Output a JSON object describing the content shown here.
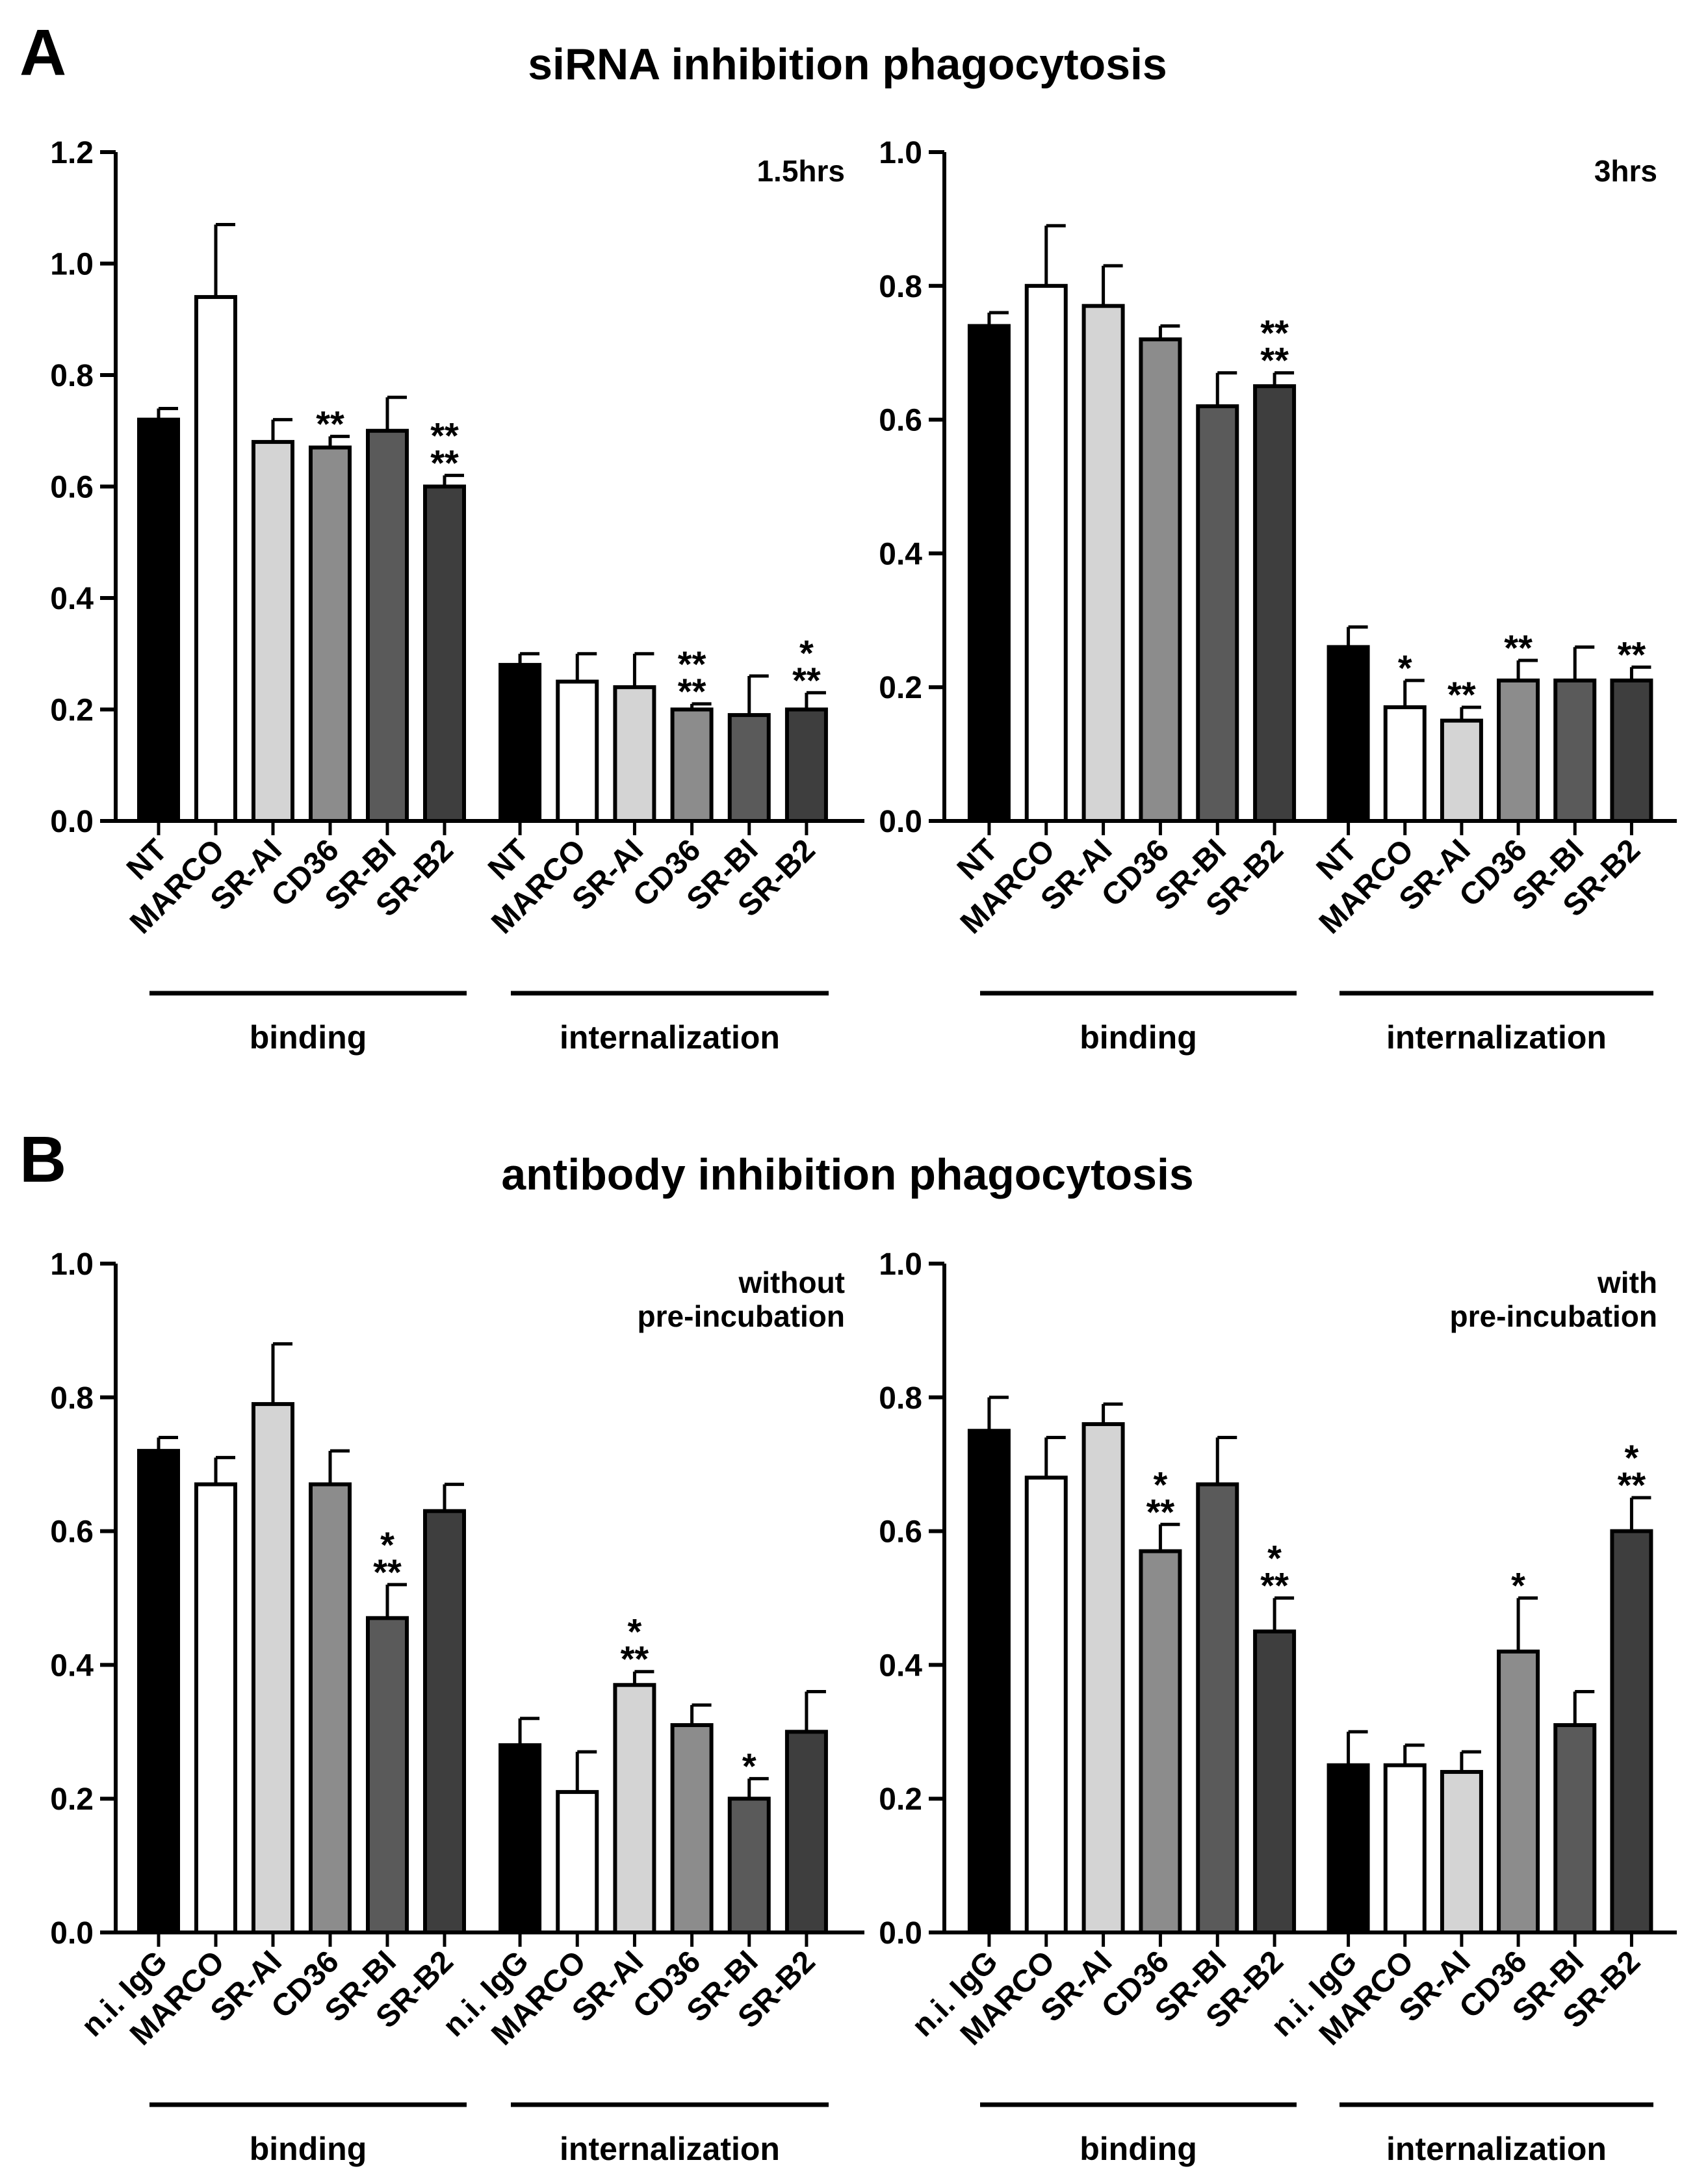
{
  "colors": {
    "NT": "#000000",
    "n.i. IgG": "#000000",
    "MARCO": "#ffffff",
    "SR-AI": "#d4d4d4",
    "CD36": "#8c8c8c",
    "SR-BI": "#5a5a5a",
    "SR-B2": "#3e3e3e",
    "stroke": "#000000"
  },
  "panels": [
    {
      "letter": "A",
      "title": "siRNA inhibition phagocytosis"
    },
    {
      "letter": "B",
      "title": "antibody inhibition phagocytosis"
    }
  ],
  "chart_data": [
    {
      "type": "bar",
      "panel": "A",
      "corner_label": [
        "1.5hrs"
      ],
      "ylim": [
        0,
        1.2
      ],
      "yticks": [
        "0.0",
        "0.2",
        "0.4",
        "0.6",
        "0.8",
        "1.0",
        "1.2"
      ],
      "groups": [
        {
          "label": "binding",
          "categories": [
            "NT",
            "MARCO",
            "SR-AI",
            "CD36",
            "SR-BI",
            "SR-B2"
          ],
          "values": [
            0.72,
            0.94,
            0.68,
            0.67,
            0.7,
            0.6
          ],
          "errors": [
            0.02,
            0.13,
            0.04,
            0.02,
            0.06,
            0.02
          ],
          "stars": [
            "",
            "",
            "",
            "**",
            "",
            "**\n**"
          ]
        },
        {
          "label": "internalization",
          "categories": [
            "NT",
            "MARCO",
            "SR-AI",
            "CD36",
            "SR-BI",
            "SR-B2"
          ],
          "values": [
            0.28,
            0.25,
            0.24,
            0.2,
            0.19,
            0.2
          ],
          "errors": [
            0.02,
            0.05,
            0.06,
            0.01,
            0.07,
            0.03
          ],
          "stars": [
            "",
            "",
            "",
            "**\n**",
            "",
            "*\n**"
          ]
        }
      ]
    },
    {
      "type": "bar",
      "panel": "A",
      "corner_label": [
        "3hrs"
      ],
      "ylim": [
        0,
        1.0
      ],
      "yticks": [
        "0.0",
        "0.2",
        "0.4",
        "0.6",
        "0.8",
        "1.0"
      ],
      "groups": [
        {
          "label": "binding",
          "categories": [
            "NT",
            "MARCO",
            "SR-AI",
            "CD36",
            "SR-BI",
            "SR-B2"
          ],
          "values": [
            0.74,
            0.8,
            0.77,
            0.72,
            0.62,
            0.65
          ],
          "errors": [
            0.02,
            0.09,
            0.06,
            0.02,
            0.05,
            0.02
          ],
          "stars": [
            "",
            "",
            "",
            "",
            "",
            "**\n**"
          ]
        },
        {
          "label": "internalization",
          "categories": [
            "NT",
            "MARCO",
            "SR-AI",
            "CD36",
            "SR-BI",
            "SR-B2"
          ],
          "values": [
            0.26,
            0.17,
            0.15,
            0.21,
            0.21,
            0.21
          ],
          "errors": [
            0.03,
            0.04,
            0.02,
            0.03,
            0.05,
            0.02
          ],
          "stars": [
            "",
            "*",
            "**",
            "**",
            "",
            "**"
          ]
        }
      ]
    },
    {
      "type": "bar",
      "panel": "B",
      "corner_label": [
        "without",
        "pre-incubation"
      ],
      "ylim": [
        0,
        1.0
      ],
      "yticks": [
        "0.0",
        "0.2",
        "0.4",
        "0.6",
        "0.8",
        "1.0"
      ],
      "groups": [
        {
          "label": "binding",
          "categories": [
            "n.i. IgG",
            "MARCO",
            "SR-AI",
            "CD36",
            "SR-BI",
            "SR-B2"
          ],
          "values": [
            0.72,
            0.67,
            0.79,
            0.67,
            0.47,
            0.63
          ],
          "errors": [
            0.02,
            0.04,
            0.09,
            0.05,
            0.05,
            0.04
          ],
          "stars": [
            "",
            "",
            "",
            "",
            "*\n**",
            ""
          ]
        },
        {
          "label": "internalization",
          "categories": [
            "n.i. IgG",
            "MARCO",
            "SR-AI",
            "CD36",
            "SR-BI",
            "SR-B2"
          ],
          "values": [
            0.28,
            0.21,
            0.37,
            0.31,
            0.2,
            0.3
          ],
          "errors": [
            0.04,
            0.06,
            0.02,
            0.03,
            0.03,
            0.06
          ],
          "stars": [
            "",
            "",
            "*\n**",
            "",
            "*",
            ""
          ]
        }
      ]
    },
    {
      "type": "bar",
      "panel": "B",
      "corner_label": [
        "with",
        "pre-incubation"
      ],
      "ylim": [
        0,
        1.0
      ],
      "yticks": [
        "0.0",
        "0.2",
        "0.4",
        "0.6",
        "0.8",
        "1.0"
      ],
      "groups": [
        {
          "label": "binding",
          "categories": [
            "n.i. IgG",
            "MARCO",
            "SR-AI",
            "CD36",
            "SR-BI",
            "SR-B2"
          ],
          "values": [
            0.75,
            0.68,
            0.76,
            0.57,
            0.67,
            0.45
          ],
          "errors": [
            0.05,
            0.06,
            0.03,
            0.04,
            0.07,
            0.05
          ],
          "stars": [
            "",
            "",
            "",
            "*\n**",
            "",
            "*\n**"
          ]
        },
        {
          "label": "internalization",
          "categories": [
            "n.i. IgG",
            "MARCO",
            "SR-AI",
            "CD36",
            "SR-BI",
            "SR-B2"
          ],
          "values": [
            0.25,
            0.25,
            0.24,
            0.42,
            0.31,
            0.6
          ],
          "errors": [
            0.05,
            0.03,
            0.03,
            0.08,
            0.05,
            0.05
          ],
          "stars": [
            "",
            "",
            "",
            "*",
            "",
            "*\n**"
          ]
        }
      ]
    }
  ]
}
